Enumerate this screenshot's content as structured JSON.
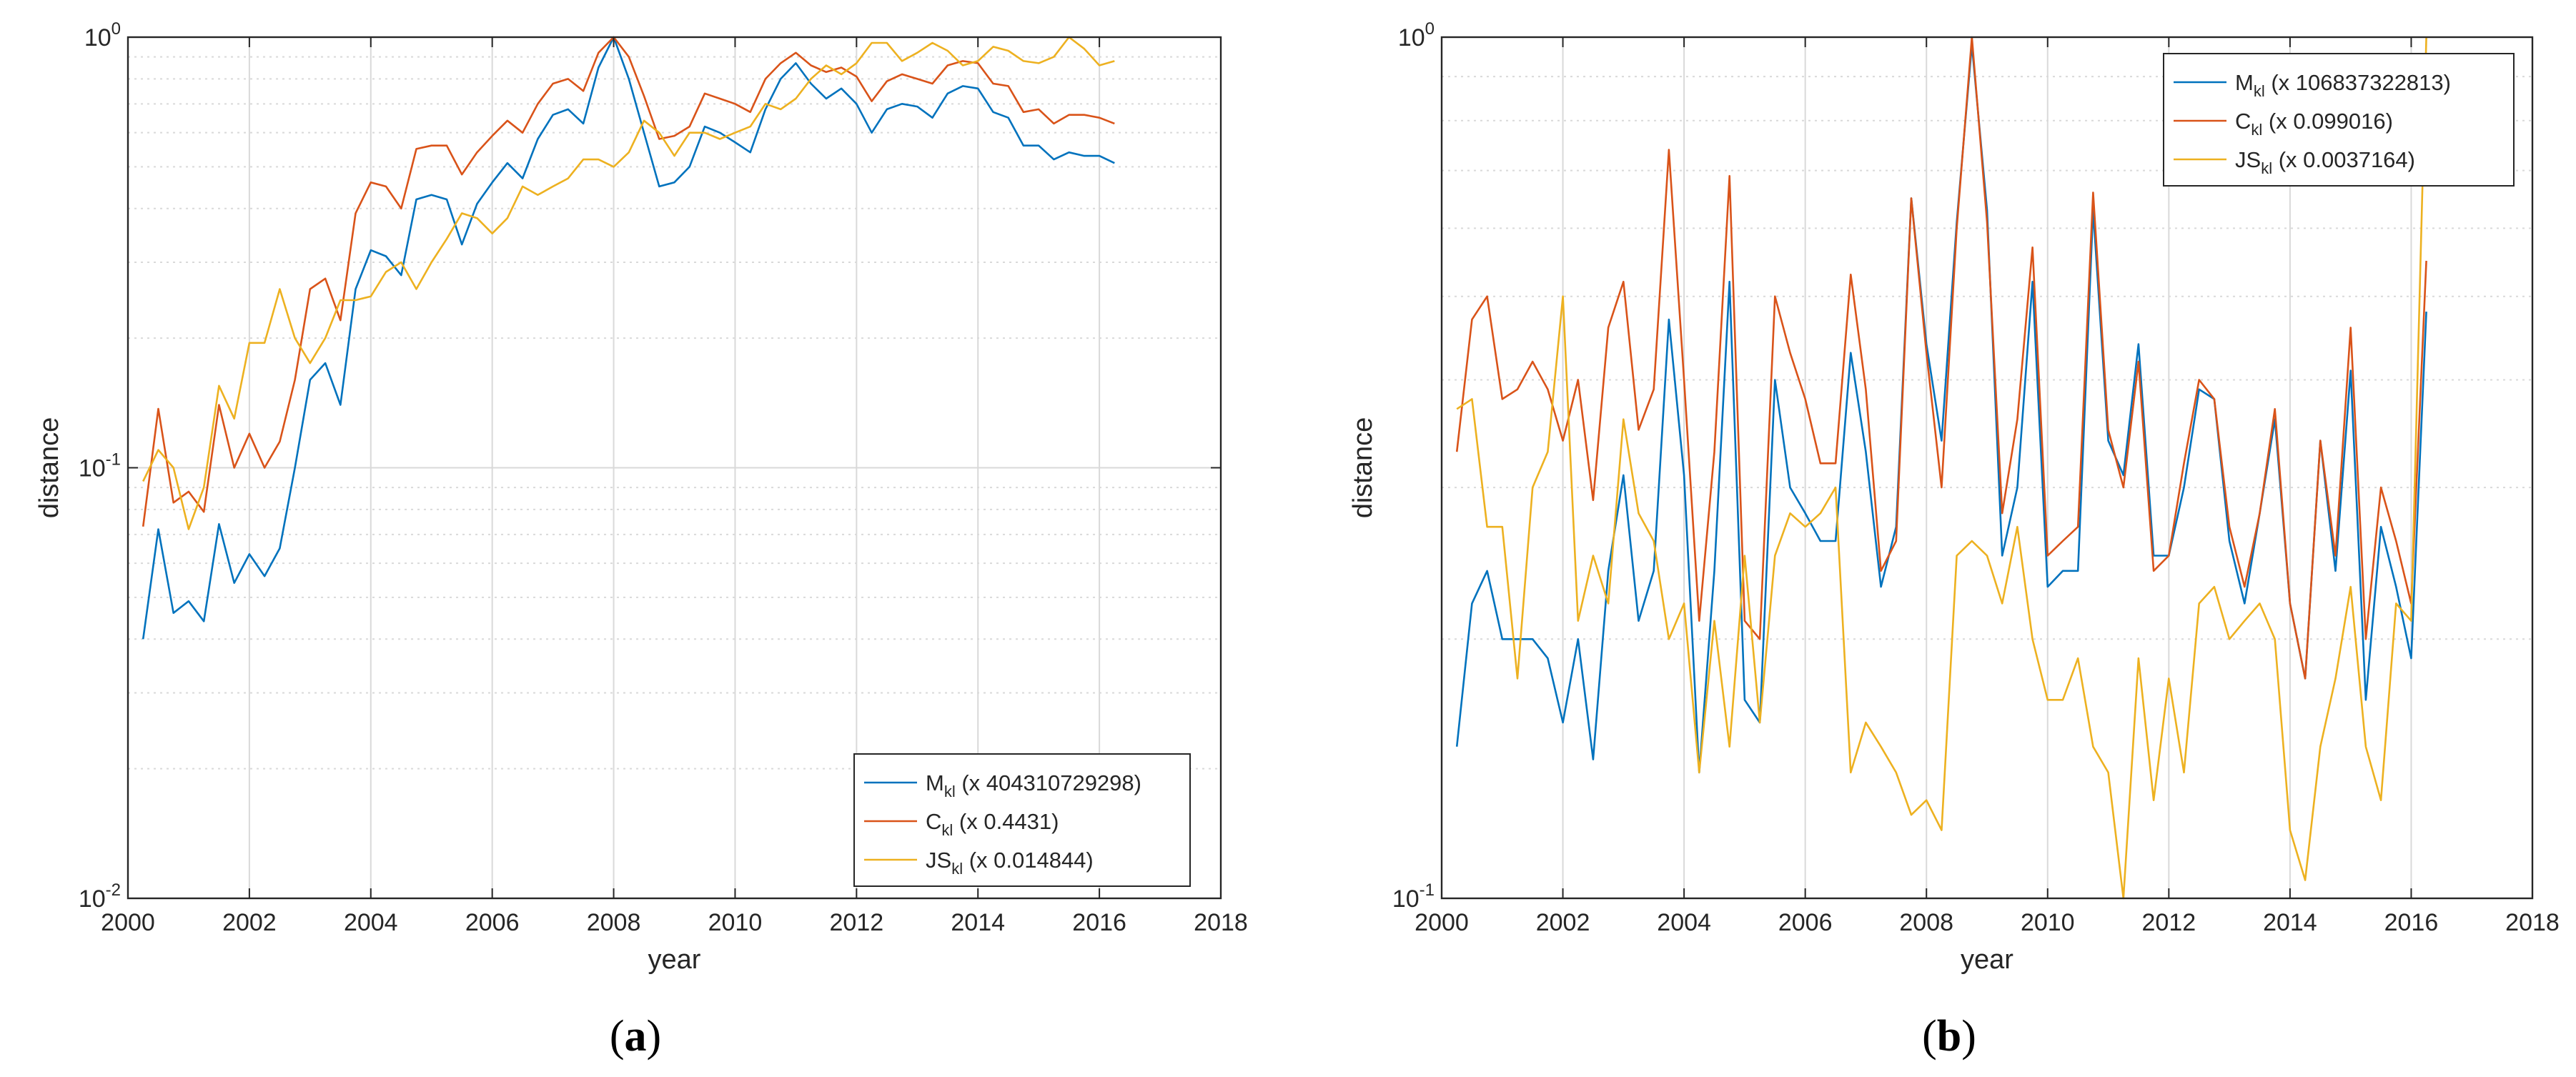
{
  "colors": {
    "blue": "#0072BD",
    "red": "#D95319",
    "yellow": "#EDB120",
    "grid": "#d9d9d9",
    "axis": "#262626"
  },
  "chart_data": [
    {
      "type": "line",
      "caption": "a",
      "xlabel": "year",
      "ylabel": "distance",
      "xlim": [
        2000,
        2018
      ],
      "ylim": [
        0.01,
        1
      ],
      "yscale": "log",
      "grid": true,
      "legend_position": "bottom-right",
      "xticks": [
        "2000",
        "2002",
        "2004",
        "2006",
        "2008",
        "2010",
        "2012",
        "2014",
        "2016",
        "2018"
      ],
      "yticks": [
        {
          "base": "10",
          "exp": "-2"
        },
        {
          "base": "10",
          "exp": "-1"
        },
        {
          "base": "10",
          "exp": "0"
        }
      ],
      "x": [
        2000.25,
        2000.5,
        2000.75,
        2001,
        2001.25,
        2001.5,
        2001.75,
        2002,
        2002.25,
        2002.5,
        2002.75,
        2003,
        2003.25,
        2003.5,
        2003.75,
        2004,
        2004.25,
        2004.5,
        2004.75,
        2005,
        2005.25,
        2005.5,
        2005.75,
        2006,
        2006.25,
        2006.5,
        2006.75,
        2007,
        2007.25,
        2007.5,
        2007.75,
        2008,
        2008.25,
        2008.5,
        2008.75,
        2009,
        2009.25,
        2009.5,
        2009.75,
        2010,
        2010.25,
        2010.5,
        2010.75,
        2011,
        2011.25,
        2011.5,
        2011.75,
        2012,
        2012.25,
        2012.5,
        2012.75,
        2013,
        2013.25,
        2013.5,
        2013.75,
        2014,
        2014.25,
        2014.5,
        2014.75,
        2015,
        2015.25,
        2015.5,
        2015.75,
        2016,
        2016.25
      ],
      "series": [
        {
          "name": "M",
          "sub": "kl",
          "scale": " (x 404310729298)",
          "color_key": "blue",
          "values": [
            0.04,
            0.072,
            0.046,
            0.049,
            0.044,
            0.074,
            0.054,
            0.063,
            0.056,
            0.065,
            0.1,
            0.16,
            0.175,
            0.14,
            0.26,
            0.32,
            0.31,
            0.28,
            0.42,
            0.43,
            0.42,
            0.33,
            0.41,
            0.46,
            0.51,
            0.47,
            0.58,
            0.66,
            0.68,
            0.63,
            0.85,
            1.0,
            0.8,
            0.6,
            0.45,
            0.46,
            0.5,
            0.62,
            0.6,
            0.57,
            0.54,
            0.68,
            0.8,
            0.87,
            0.78,
            0.72,
            0.76,
            0.7,
            0.6,
            0.68,
            0.7,
            0.69,
            0.65,
            0.74,
            0.77,
            0.76,
            0.67,
            0.65,
            0.56,
            0.56,
            0.52,
            0.54,
            0.53,
            0.53,
            0.51
          ]
        },
        {
          "name": "C",
          "sub": "kl",
          "scale": " (x 0.4431)",
          "color_key": "red",
          "values": [
            0.073,
            0.137,
            0.083,
            0.088,
            0.079,
            0.14,
            0.1,
            0.12,
            0.1,
            0.115,
            0.16,
            0.26,
            0.275,
            0.22,
            0.39,
            0.46,
            0.45,
            0.4,
            0.55,
            0.56,
            0.56,
            0.48,
            0.54,
            0.59,
            0.64,
            0.6,
            0.7,
            0.78,
            0.8,
            0.75,
            0.92,
            1.0,
            0.9,
            0.73,
            0.58,
            0.59,
            0.62,
            0.74,
            0.72,
            0.7,
            0.67,
            0.8,
            0.87,
            0.92,
            0.86,
            0.83,
            0.85,
            0.81,
            0.71,
            0.79,
            0.82,
            0.8,
            0.78,
            0.86,
            0.88,
            0.87,
            0.78,
            0.77,
            0.67,
            0.68,
            0.63,
            0.66,
            0.66,
            0.65,
            0.63
          ]
        },
        {
          "name": "JS",
          "sub": "kl",
          "scale": " (x 0.014844)",
          "color_key": "yellow",
          "values": [
            0.093,
            0.11,
            0.1,
            0.072,
            0.09,
            0.155,
            0.13,
            0.195,
            0.195,
            0.26,
            0.2,
            0.175,
            0.2,
            0.245,
            0.245,
            0.25,
            0.285,
            0.3,
            0.26,
            0.3,
            0.34,
            0.39,
            0.38,
            0.35,
            0.38,
            0.45,
            0.43,
            0.45,
            0.47,
            0.52,
            0.52,
            0.5,
            0.54,
            0.64,
            0.6,
            0.53,
            0.6,
            0.6,
            0.58,
            0.6,
            0.62,
            0.7,
            0.68,
            0.72,
            0.8,
            0.86,
            0.82,
            0.87,
            0.97,
            0.97,
            0.88,
            0.92,
            0.97,
            0.93,
            0.86,
            0.88,
            0.95,
            0.93,
            0.88,
            0.87,
            0.9,
            1.0,
            0.94,
            0.86,
            0.88
          ]
        }
      ]
    },
    {
      "type": "line",
      "caption": "b",
      "xlabel": "year",
      "ylabel": "distance",
      "xlim": [
        2000,
        2018
      ],
      "ylim": [
        0.1,
        1
      ],
      "yscale": "log",
      "grid": true,
      "legend_position": "top-right",
      "xticks": [
        "2000",
        "2002",
        "2004",
        "2006",
        "2008",
        "2010",
        "2012",
        "2014",
        "2016",
        "2018"
      ],
      "yticks": [
        {
          "base": "10",
          "exp": "-1"
        },
        {
          "base": "10",
          "exp": "0"
        }
      ],
      "x": [
        2000.25,
        2000.5,
        2000.75,
        2001,
        2001.25,
        2001.5,
        2001.75,
        2002,
        2002.25,
        2002.5,
        2002.75,
        2003,
        2003.25,
        2003.5,
        2003.75,
        2004,
        2004.25,
        2004.5,
        2004.75,
        2005,
        2005.25,
        2005.5,
        2005.75,
        2006,
        2006.25,
        2006.5,
        2006.75,
        2007,
        2007.25,
        2007.5,
        2007.75,
        2008,
        2008.25,
        2008.5,
        2008.75,
        2009,
        2009.25,
        2009.5,
        2009.75,
        2010,
        2010.25,
        2010.5,
        2010.75,
        2011,
        2011.25,
        2011.5,
        2011.75,
        2012,
        2012.25,
        2012.5,
        2012.75,
        2013,
        2013.25,
        2013.5,
        2013.75,
        2014,
        2014.25,
        2014.5,
        2014.75,
        2015,
        2015.25,
        2015.5,
        2015.75,
        2016,
        2016.25
      ],
      "series": [
        {
          "name": "M",
          "sub": "kl",
          "scale": " (x 106837322813)",
          "color_key": "blue",
          "values": [
            0.15,
            0.22,
            0.24,
            0.2,
            0.2,
            0.2,
            0.19,
            0.16,
            0.2,
            0.145,
            0.24,
            0.31,
            0.21,
            0.24,
            0.47,
            0.31,
            0.14,
            0.24,
            0.52,
            0.17,
            0.16,
            0.4,
            0.3,
            0.28,
            0.26,
            0.26,
            0.43,
            0.33,
            0.23,
            0.27,
            0.65,
            0.44,
            0.34,
            0.61,
            0.98,
            0.63,
            0.25,
            0.3,
            0.52,
            0.23,
            0.24,
            0.24,
            0.63,
            0.34,
            0.31,
            0.44,
            0.25,
            0.25,
            0.3,
            0.39,
            0.38,
            0.26,
            0.22,
            0.28,
            0.36,
            0.22,
            0.18,
            0.34,
            0.24,
            0.41,
            0.17,
            0.27,
            0.23,
            0.19,
            0.48
          ]
        },
        {
          "name": "C",
          "sub": "kl",
          "scale": " (x 0.099016)",
          "color_key": "red",
          "values": [
            0.33,
            0.47,
            0.5,
            0.38,
            0.39,
            0.42,
            0.39,
            0.34,
            0.4,
            0.29,
            0.46,
            0.52,
            0.35,
            0.39,
            0.74,
            0.4,
            0.21,
            0.33,
            0.69,
            0.21,
            0.2,
            0.5,
            0.43,
            0.38,
            0.32,
            0.32,
            0.53,
            0.39,
            0.24,
            0.26,
            0.65,
            0.43,
            0.3,
            0.6,
            1.0,
            0.61,
            0.28,
            0.36,
            0.57,
            0.25,
            0.26,
            0.27,
            0.66,
            0.35,
            0.3,
            0.42,
            0.24,
            0.25,
            0.32,
            0.4,
            0.38,
            0.27,
            0.23,
            0.28,
            0.37,
            0.22,
            0.18,
            0.34,
            0.25,
            0.46,
            0.2,
            0.3,
            0.26,
            0.22,
            0.55
          ]
        },
        {
          "name": "JS",
          "sub": "kl",
          "scale": " (x 0.0037164)",
          "color_key": "yellow",
          "values": [
            0.37,
            0.38,
            0.27,
            0.27,
            0.18,
            0.3,
            0.33,
            0.5,
            0.21,
            0.25,
            0.22,
            0.36,
            0.28,
            0.26,
            0.2,
            0.22,
            0.14,
            0.21,
            0.15,
            0.25,
            0.16,
            0.25,
            0.28,
            0.27,
            0.28,
            0.3,
            0.14,
            0.16,
            0.15,
            0.14,
            0.125,
            0.13,
            0.12,
            0.25,
            0.26,
            0.25,
            0.22,
            0.27,
            0.2,
            0.17,
            0.17,
            0.19,
            0.15,
            0.14,
            0.1,
            0.19,
            0.13,
            0.18,
            0.14,
            0.22,
            0.23,
            0.2,
            0.21,
            0.22,
            0.2,
            0.12,
            0.105,
            0.15,
            0.18,
            0.23,
            0.15,
            0.13,
            0.22,
            0.21,
            1.0
          ]
        }
      ]
    }
  ]
}
